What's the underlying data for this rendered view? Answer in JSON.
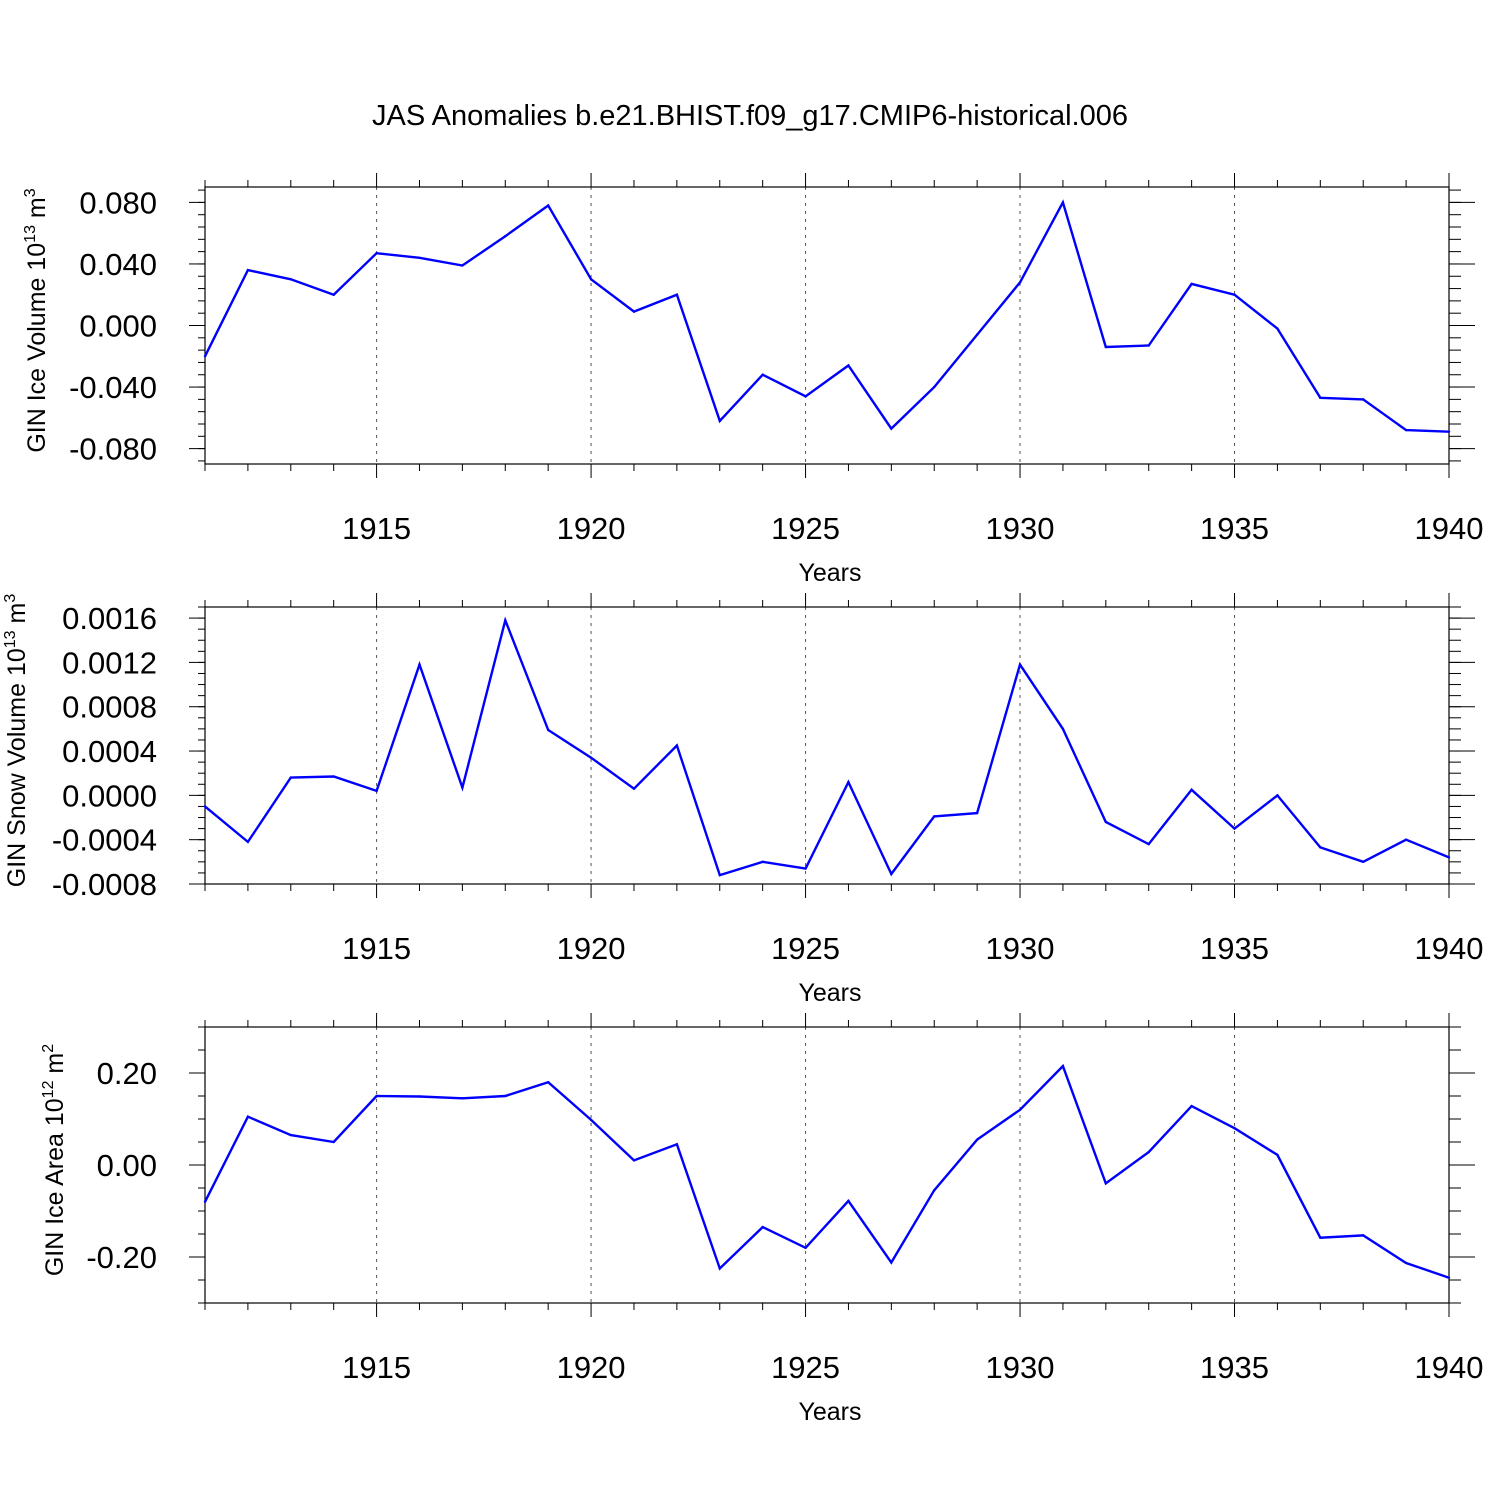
{
  "figure_title": "JAS Anomalies b.e21.BHIST.f09_g17.CMIP6-historical.006",
  "colors": {
    "line": "#0000ff",
    "axes": "#000000",
    "grid": "#555555"
  },
  "chart_data": [
    {
      "type": "line",
      "title": "",
      "xlabel": "Years",
      "ylabel": {
        "main": "GIN Ice Volume 10",
        "sup": "13",
        "unit": " m",
        "unit_sup": "3"
      },
      "x": [
        1911,
        1912,
        1913,
        1914,
        1915,
        1916,
        1917,
        1918,
        1919,
        1920,
        1921,
        1922,
        1923,
        1924,
        1925,
        1926,
        1927,
        1928,
        1929,
        1930,
        1931,
        1932,
        1933,
        1934,
        1935,
        1936,
        1937,
        1938,
        1939,
        1940
      ],
      "values": [
        -0.02,
        0.036,
        0.03,
        0.02,
        0.047,
        0.044,
        0.039,
        0.058,
        0.078,
        0.03,
        0.009,
        0.02,
        -0.062,
        -0.032,
        -0.046,
        -0.026,
        -0.067,
        -0.04,
        -0.006,
        0.028,
        0.08,
        -0.014,
        -0.013,
        0.027,
        0.02,
        -0.002,
        -0.047,
        -0.048,
        -0.068,
        -0.069
      ],
      "xlim": [
        1911,
        1940
      ],
      "ylim": [
        -0.09,
        0.09
      ],
      "xticks": [
        "1915",
        "1920",
        "1925",
        "1930",
        "1935",
        "1940"
      ],
      "yticks": [
        {
          "v": 0.08,
          "label": "0.080"
        },
        {
          "v": 0.04,
          "label": "0.040"
        },
        {
          "v": 0.0,
          "label": "0.000"
        },
        {
          "v": -0.04,
          "label": "-0.040"
        },
        {
          "v": -0.08,
          "label": "-0.080"
        }
      ],
      "yminor_step": 0.008,
      "grid": "vertical dashed at major x ticks"
    },
    {
      "type": "line",
      "title": "",
      "xlabel": "Years",
      "ylabel": {
        "main": "GIN Snow Volume 10",
        "sup": "13",
        "unit": " m",
        "unit_sup": "3"
      },
      "x": [
        1911,
        1912,
        1913,
        1914,
        1915,
        1916,
        1917,
        1918,
        1919,
        1920,
        1921,
        1922,
        1923,
        1924,
        1925,
        1926,
        1927,
        1928,
        1929,
        1930,
        1931,
        1932,
        1933,
        1934,
        1935,
        1936,
        1937,
        1938,
        1939,
        1940
      ],
      "values": [
        -0.0001,
        -0.00042,
        0.00016,
        0.00017,
        4e-05,
        0.00118,
        7e-05,
        0.00158,
        0.00059,
        0.00034,
        6e-05,
        0.00045,
        -0.00072,
        -0.0006,
        -0.00066,
        0.00012,
        -0.00071,
        -0.00019,
        -0.00016,
        0.00118,
        0.0006,
        -0.00024,
        -0.00044,
        5e-05,
        -0.0003,
        0.0,
        -0.00047,
        -0.0006,
        -0.0004,
        -0.00056
      ],
      "xlim": [
        1911,
        1940
      ],
      "ylim": [
        -0.0008,
        0.0017
      ],
      "xticks": [
        "1915",
        "1920",
        "1925",
        "1930",
        "1935",
        "1940"
      ],
      "yticks": [
        {
          "v": 0.0016,
          "label": "0.0016"
        },
        {
          "v": 0.0012,
          "label": "0.0012"
        },
        {
          "v": 0.0008,
          "label": "0.0008"
        },
        {
          "v": 0.0004,
          "label": "0.0004"
        },
        {
          "v": 0.0,
          "label": "0.0000"
        },
        {
          "v": -0.0004,
          "label": "-0.0004"
        },
        {
          "v": -0.0008,
          "label": "-0.0008"
        }
      ],
      "yminor_step": 0.0001,
      "grid": "vertical dashed at major x ticks"
    },
    {
      "type": "line",
      "title": "",
      "xlabel": "Years",
      "ylabel": {
        "main": "GIN Ice Area 10",
        "sup": "12",
        "unit": " m",
        "unit_sup": "2"
      },
      "x": [
        1911,
        1912,
        1913,
        1914,
        1915,
        1916,
        1917,
        1918,
        1919,
        1920,
        1921,
        1922,
        1923,
        1924,
        1925,
        1926,
        1927,
        1928,
        1929,
        1930,
        1931,
        1932,
        1933,
        1934,
        1935,
        1936,
        1937,
        1938,
        1939,
        1940
      ],
      "values": [
        -0.08,
        0.105,
        0.065,
        0.05,
        0.15,
        0.149,
        0.145,
        0.15,
        0.18,
        0.098,
        0.01,
        0.045,
        -0.225,
        -0.135,
        -0.18,
        -0.078,
        -0.212,
        -0.055,
        0.055,
        0.12,
        0.215,
        -0.04,
        0.028,
        0.128,
        0.08,
        0.022,
        -0.158,
        -0.153,
        -0.213,
        -0.245
      ],
      "xlim": [
        1911,
        1940
      ],
      "ylim": [
        -0.3,
        0.3
      ],
      "xticks": [
        "1915",
        "1920",
        "1925",
        "1930",
        "1935",
        "1940"
      ],
      "yticks": [
        {
          "v": 0.2,
          "label": "0.20"
        },
        {
          "v": 0.0,
          "label": "0.00"
        },
        {
          "v": -0.2,
          "label": "-0.20"
        }
      ],
      "yminor_step": 0.05,
      "grid": "vertical dashed at major x ticks"
    }
  ]
}
